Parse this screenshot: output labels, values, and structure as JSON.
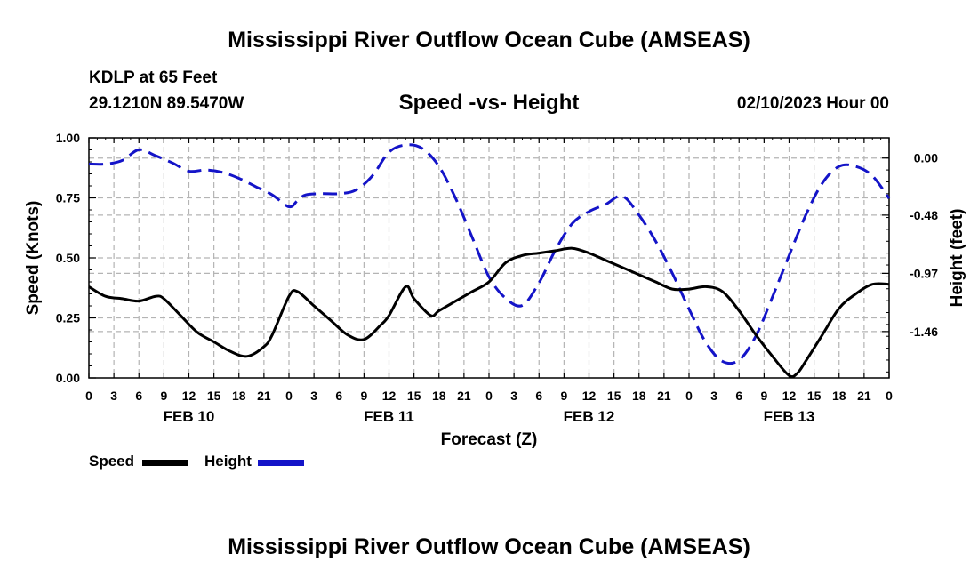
{
  "header": {
    "title": "Mississippi River Outflow Ocean Cube (AMSEAS)",
    "station": "KDLP at 65 Feet",
    "coords": "29.1210N  89.5470W",
    "subtitle": "Speed -vs- Height",
    "date": "02/10/2023 Hour 00"
  },
  "footer": {
    "title": "Mississippi River Outflow Ocean Cube (AMSEAS)"
  },
  "legend": {
    "speed_label": "Speed",
    "height_label": "Height"
  },
  "chart_data": {
    "type": "line",
    "xlabel": "Forecast (Z)",
    "ylabel": "Speed (Knots)",
    "y2label": "Height (feet)",
    "x_tick_labels": [
      "0",
      "3",
      "6",
      "9",
      "12",
      "15",
      "18",
      "21",
      "0",
      "3",
      "6",
      "9",
      "12",
      "15",
      "18",
      "21",
      "0",
      "3",
      "6",
      "9",
      "12",
      "15",
      "18",
      "21",
      "0",
      "3",
      "6",
      "9",
      "12",
      "15",
      "18",
      "21",
      "0"
    ],
    "day_labels": [
      {
        "hour": 12,
        "label": "FEB 10"
      },
      {
        "hour": 36,
        "label": "FEB 11"
      },
      {
        "hour": 60,
        "label": "FEB 12"
      },
      {
        "hour": 84,
        "label": "FEB 13"
      }
    ],
    "xlim": [
      0,
      96
    ],
    "ylim": [
      0,
      1.0
    ],
    "y_ticks": [
      "0.00",
      "0.25",
      "0.50",
      "0.75",
      "1.00"
    ],
    "y2lim": [
      -1.85,
      0.17
    ],
    "y2_ticks": [
      "0.00",
      "-0.48",
      "-0.97",
      "-1.46"
    ],
    "grid": true,
    "series": [
      {
        "name": "Speed",
        "axis": "left",
        "color": "#000000",
        "dash": "solid",
        "x": [
          0,
          2,
          4,
          6,
          8,
          9,
          11,
          13,
          15,
          17,
          19,
          21,
          22,
          24,
          25,
          27,
          29,
          31,
          33,
          35,
          36,
          38,
          39,
          41,
          42,
          44,
          46,
          48,
          50,
          52,
          54,
          56,
          58,
          60,
          62,
          64,
          66,
          68,
          70,
          72,
          74,
          76,
          78,
          80,
          82,
          84,
          85,
          86,
          88,
          90,
          92,
          94,
          96
        ],
        "values": [
          0.38,
          0.34,
          0.33,
          0.32,
          0.34,
          0.33,
          0.26,
          0.19,
          0.15,
          0.11,
          0.09,
          0.13,
          0.18,
          0.34,
          0.36,
          0.3,
          0.24,
          0.18,
          0.16,
          0.22,
          0.26,
          0.38,
          0.33,
          0.26,
          0.28,
          0.32,
          0.36,
          0.4,
          0.48,
          0.51,
          0.52,
          0.53,
          0.54,
          0.52,
          0.49,
          0.46,
          0.43,
          0.4,
          0.37,
          0.37,
          0.38,
          0.36,
          0.28,
          0.18,
          0.09,
          0.01,
          0.02,
          0.07,
          0.18,
          0.29,
          0.35,
          0.39,
          0.39
        ]
      },
      {
        "name": "Height",
        "axis": "right",
        "color": "#1414c8",
        "dash": "dashed",
        "x": [
          0,
          2,
          4,
          6,
          8,
          10,
          12,
          14,
          16,
          18,
          20,
          22,
          24,
          25,
          26,
          28,
          30,
          32,
          34,
          36,
          38,
          40,
          42,
          44,
          46,
          48,
          50,
          52,
          54,
          56,
          58,
          60,
          62,
          64,
          66,
          68,
          70,
          72,
          74,
          76,
          78,
          80,
          82,
          84,
          86,
          88,
          90,
          92,
          94,
          96
        ],
        "values": [
          -0.05,
          -0.05,
          -0.02,
          0.07,
          0.02,
          -0.04,
          -0.11,
          -0.1,
          -0.12,
          -0.17,
          -0.24,
          -0.31,
          -0.41,
          -0.36,
          -0.31,
          -0.3,
          -0.3,
          -0.27,
          -0.15,
          0.05,
          0.11,
          0.08,
          -0.07,
          -0.34,
          -0.67,
          -1.0,
          -1.18,
          -1.24,
          -1.05,
          -0.77,
          -0.55,
          -0.45,
          -0.39,
          -0.32,
          -0.48,
          -0.7,
          -0.97,
          -1.27,
          -1.55,
          -1.71,
          -1.7,
          -1.5,
          -1.17,
          -0.82,
          -0.48,
          -0.21,
          -0.07,
          -0.07,
          -0.15,
          -0.34
        ]
      }
    ]
  }
}
